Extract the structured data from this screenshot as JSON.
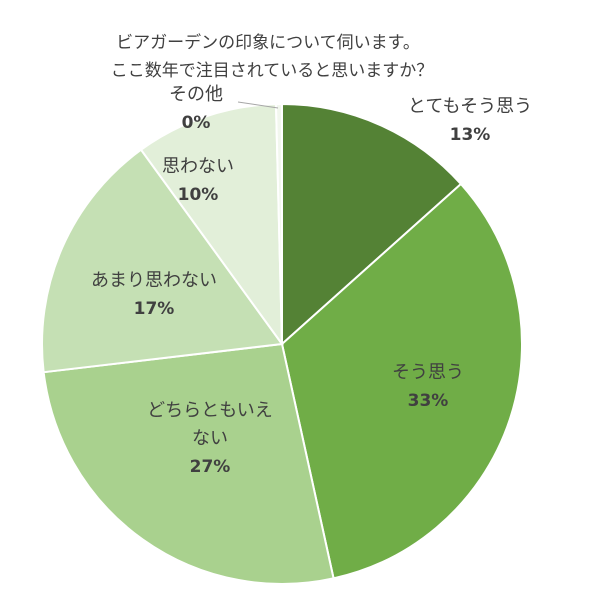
{
  "chart_data": {
    "type": "pie",
    "title_lines": [
      "ビアガーデンの印象について伺います。",
      "ここ数年で注目されていると思いますか？"
    ],
    "slices": [
      {
        "label_lines": [
          "とてもそう思う"
        ],
        "percent_label": "13%",
        "value": 13.4,
        "color": "#548235"
      },
      {
        "label_lines": [
          "そう思う"
        ],
        "percent_label": "33%",
        "value": 33.2,
        "color": "#70ad47"
      },
      {
        "label_lines": [
          "どちらともいえ",
          "ない"
        ],
        "percent_label": "27%",
        "value": 26.6,
        "color": "#a9d18e"
      },
      {
        "label_lines": [
          "あまり思わない"
        ],
        "percent_label": "17%",
        "value": 16.9,
        "color": "#c5e0b4"
      },
      {
        "label_lines": [
          "思わない"
        ],
        "percent_label": "10%",
        "value": 9.6,
        "color": "#e2efd9"
      },
      {
        "label_lines": [
          "その他"
        ],
        "percent_label": "0%",
        "value": 0.4,
        "color": "#f2f7ee"
      }
    ]
  }
}
